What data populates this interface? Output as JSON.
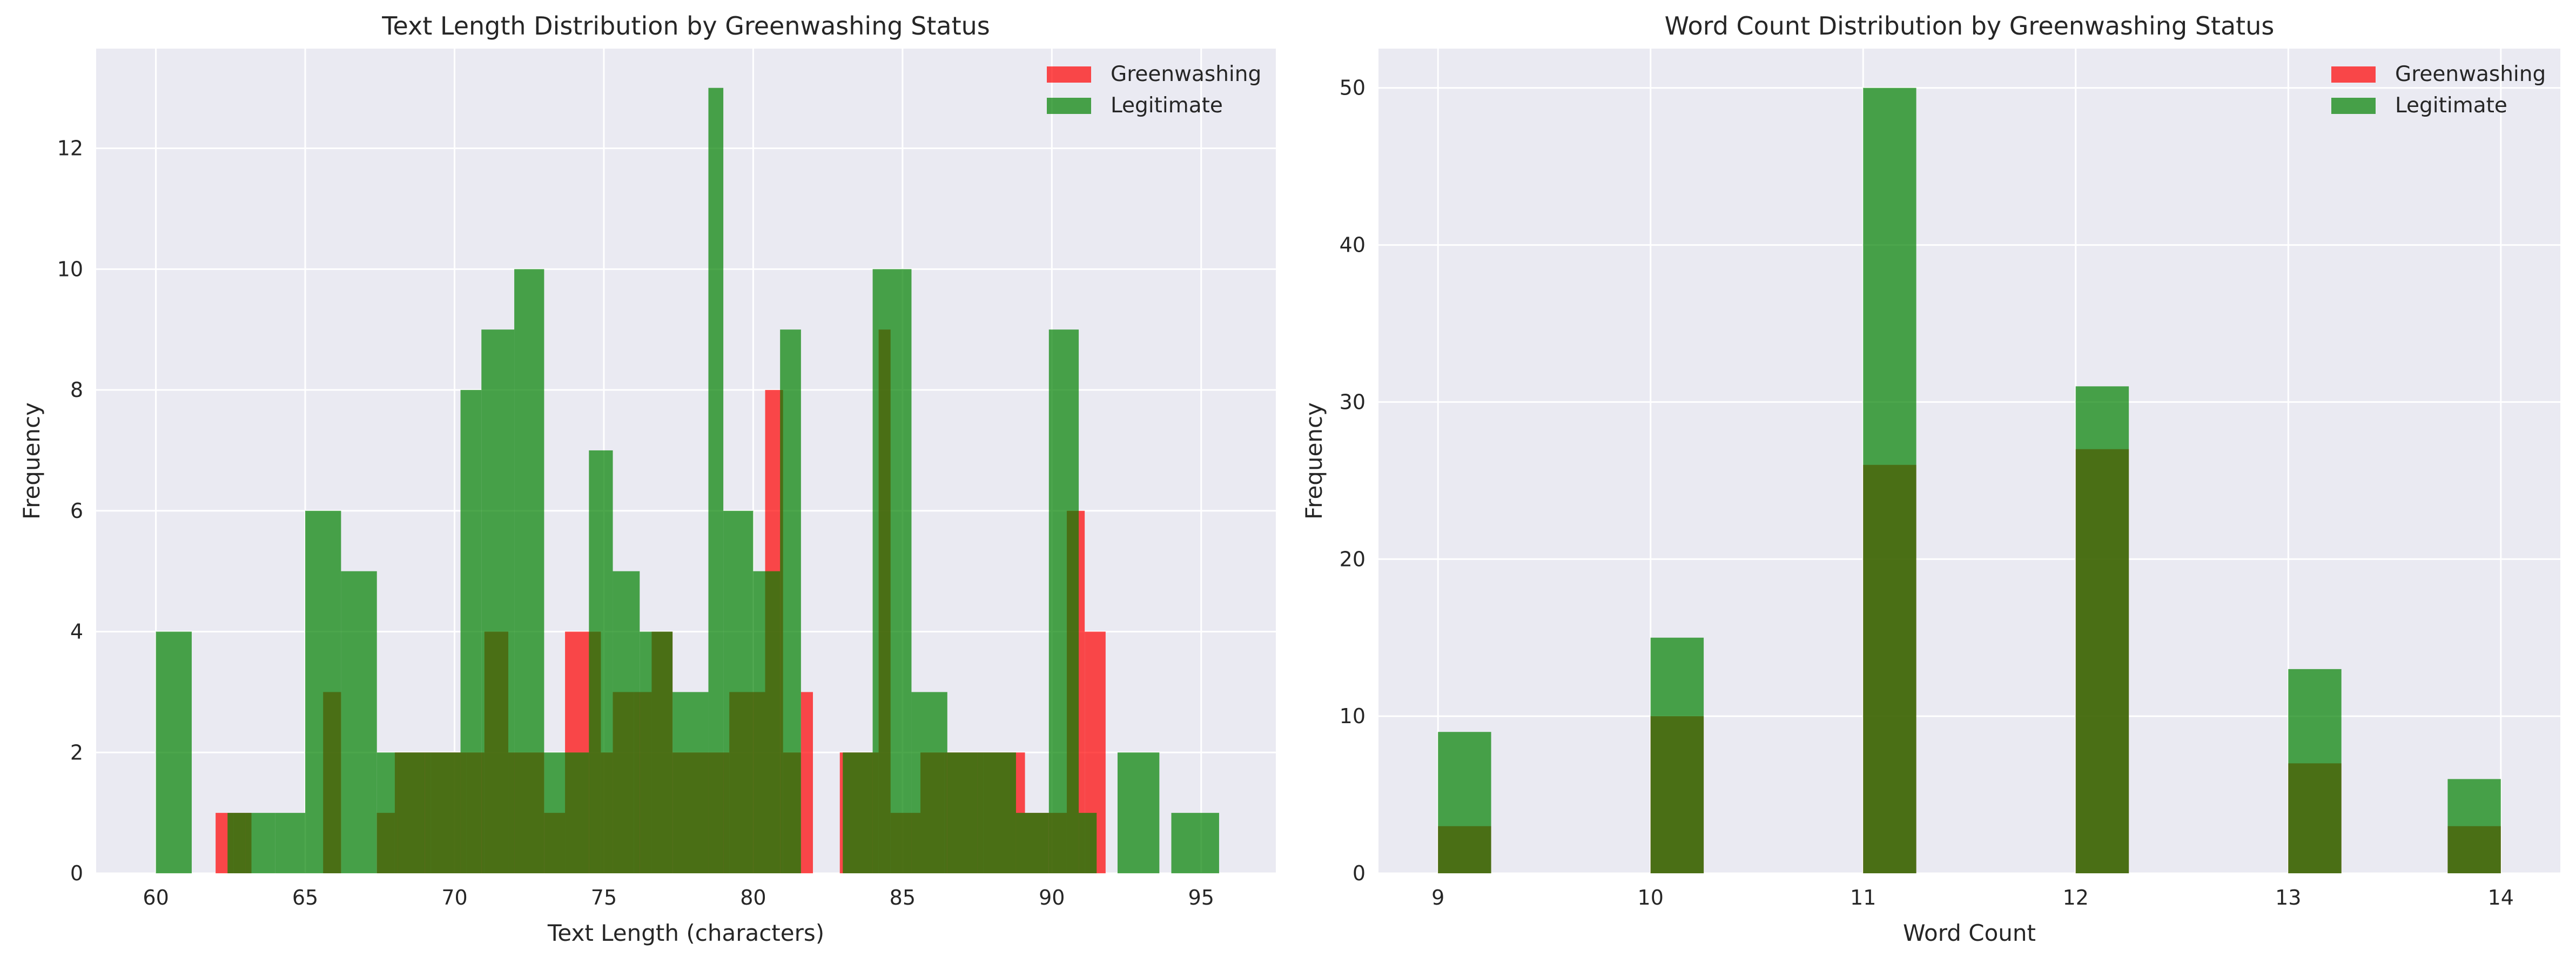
{
  "colors": {
    "greenwashing": "#ff0000",
    "legitimate": "#008000",
    "panel_bg": "#eaeaf2",
    "grid": "#ffffff"
  },
  "chart_data": [
    {
      "type": "histogram",
      "title": "Text Length Distribution by Greenwashing Status",
      "xlabel": "Text Length (characters)",
      "ylabel": "Frequency",
      "xlim": [
        58,
        97.5
      ],
      "ylim": [
        0,
        13.65
      ],
      "xticks": [
        60,
        65,
        70,
        75,
        80,
        85,
        90,
        95
      ],
      "yticks": [
        0,
        2,
        4,
        6,
        8,
        10,
        12
      ],
      "grid": true,
      "legend_position": "top-right",
      "alpha": 0.7,
      "series": [
        {
          "name": "Greenwashing",
          "color": "#ff0000",
          "bins": [
            [
              62,
              62.6,
              1
            ],
            [
              62.6,
              63.2,
              1
            ],
            [
              65.6,
              66.2,
              3
            ],
            [
              67.4,
              68,
              1
            ],
            [
              68,
              69.2,
              2
            ],
            [
              69.2,
              70.4,
              2
            ],
            [
              70.4,
              71,
              2
            ],
            [
              71,
              71.8,
              4
            ],
            [
              71.8,
              73,
              2
            ],
            [
              73,
              73.7,
              1
            ],
            [
              73.7,
              74.9,
              4
            ],
            [
              74.9,
              75.3,
              2
            ],
            [
              75.3,
              76,
              3
            ],
            [
              76,
              76.6,
              3
            ],
            [
              76.6,
              77.3,
              4
            ],
            [
              77.3,
              78.5,
              2
            ],
            [
              78.5,
              79.2,
              2
            ],
            [
              79.2,
              80.4,
              3
            ],
            [
              80.4,
              81,
              8
            ],
            [
              81,
              81.6,
              2
            ],
            [
              81.6,
              82,
              3
            ],
            [
              82.9,
              83.6,
              2
            ],
            [
              83.6,
              84.2,
              2
            ],
            [
              84.2,
              84.6,
              9
            ],
            [
              84.6,
              85.6,
              1
            ],
            [
              85.6,
              86.4,
              2
            ],
            [
              86.4,
              87.7,
              2
            ],
            [
              87.7,
              88.9,
              2
            ],
            [
              88.9,
              89.1,
              2
            ],
            [
              89.1,
              89.9,
              1
            ],
            [
              89.9,
              90.5,
              1
            ],
            [
              90.5,
              91.1,
              6
            ],
            [
              91.1,
              91.8,
              4
            ]
          ]
        },
        {
          "name": "Legitimate",
          "color": "#008000",
          "bins": [
            [
              60,
              61.2,
              4
            ],
            [
              62.4,
              63,
              1
            ],
            [
              63,
              64,
              1
            ],
            [
              64,
              65,
              1
            ],
            [
              65,
              66.2,
              6
            ],
            [
              66.2,
              67.4,
              5
            ],
            [
              67.4,
              68.1,
              2
            ],
            [
              68.1,
              69,
              2
            ],
            [
              69,
              70.2,
              2
            ],
            [
              70.2,
              70.9,
              8
            ],
            [
              70.9,
              72,
              9
            ],
            [
              72,
              73,
              10
            ],
            [
              73,
              74.5,
              2
            ],
            [
              74.5,
              75.3,
              7
            ],
            [
              75.3,
              76.2,
              5
            ],
            [
              76.2,
              77.3,
              4
            ],
            [
              77.3,
              78.5,
              3
            ],
            [
              78.5,
              79,
              13
            ],
            [
              79,
              80,
              6
            ],
            [
              80,
              80.9,
              5
            ],
            [
              80.9,
              81.6,
              9
            ],
            [
              83,
              84,
              2
            ],
            [
              84,
              85.3,
              10
            ],
            [
              85.3,
              86.5,
              3
            ],
            [
              86.5,
              87.5,
              2
            ],
            [
              87.5,
              88.8,
              2
            ],
            [
              88.8,
              89.9,
              1
            ],
            [
              89.9,
              90.9,
              9
            ],
            [
              90.9,
              91.5,
              1
            ],
            [
              92.2,
              93.6,
              2
            ],
            [
              94,
              95.6,
              1
            ]
          ]
        }
      ]
    },
    {
      "type": "histogram",
      "title": "Word Count Distribution by Greenwashing Status",
      "xlabel": "Word Count",
      "ylabel": "Frequency",
      "xlim": [
        8.72,
        14.28
      ],
      "ylim": [
        0,
        52.5
      ],
      "xticks": [
        9,
        10,
        11,
        12,
        13,
        14
      ],
      "yticks": [
        0,
        10,
        20,
        30,
        40,
        50
      ],
      "grid": true,
      "legend_position": "top-right",
      "alpha": 0.7,
      "series": [
        {
          "name": "Greenwashing",
          "color": "#ff0000",
          "bins": [
            [
              9,
              9.25,
              3
            ],
            [
              10,
              10.25,
              10
            ],
            [
              11,
              11.25,
              26
            ],
            [
              12,
              12.25,
              27
            ],
            [
              13,
              13.25,
              7
            ],
            [
              13.75,
              14,
              3
            ]
          ]
        },
        {
          "name": "Legitimate",
          "color": "#008000",
          "bins": [
            [
              9,
              9.25,
              9
            ],
            [
              10,
              10.25,
              15
            ],
            [
              11,
              11.25,
              50
            ],
            [
              12,
              12.25,
              31
            ],
            [
              13,
              13.25,
              13
            ],
            [
              13.75,
              14,
              6
            ]
          ]
        }
      ]
    }
  ]
}
